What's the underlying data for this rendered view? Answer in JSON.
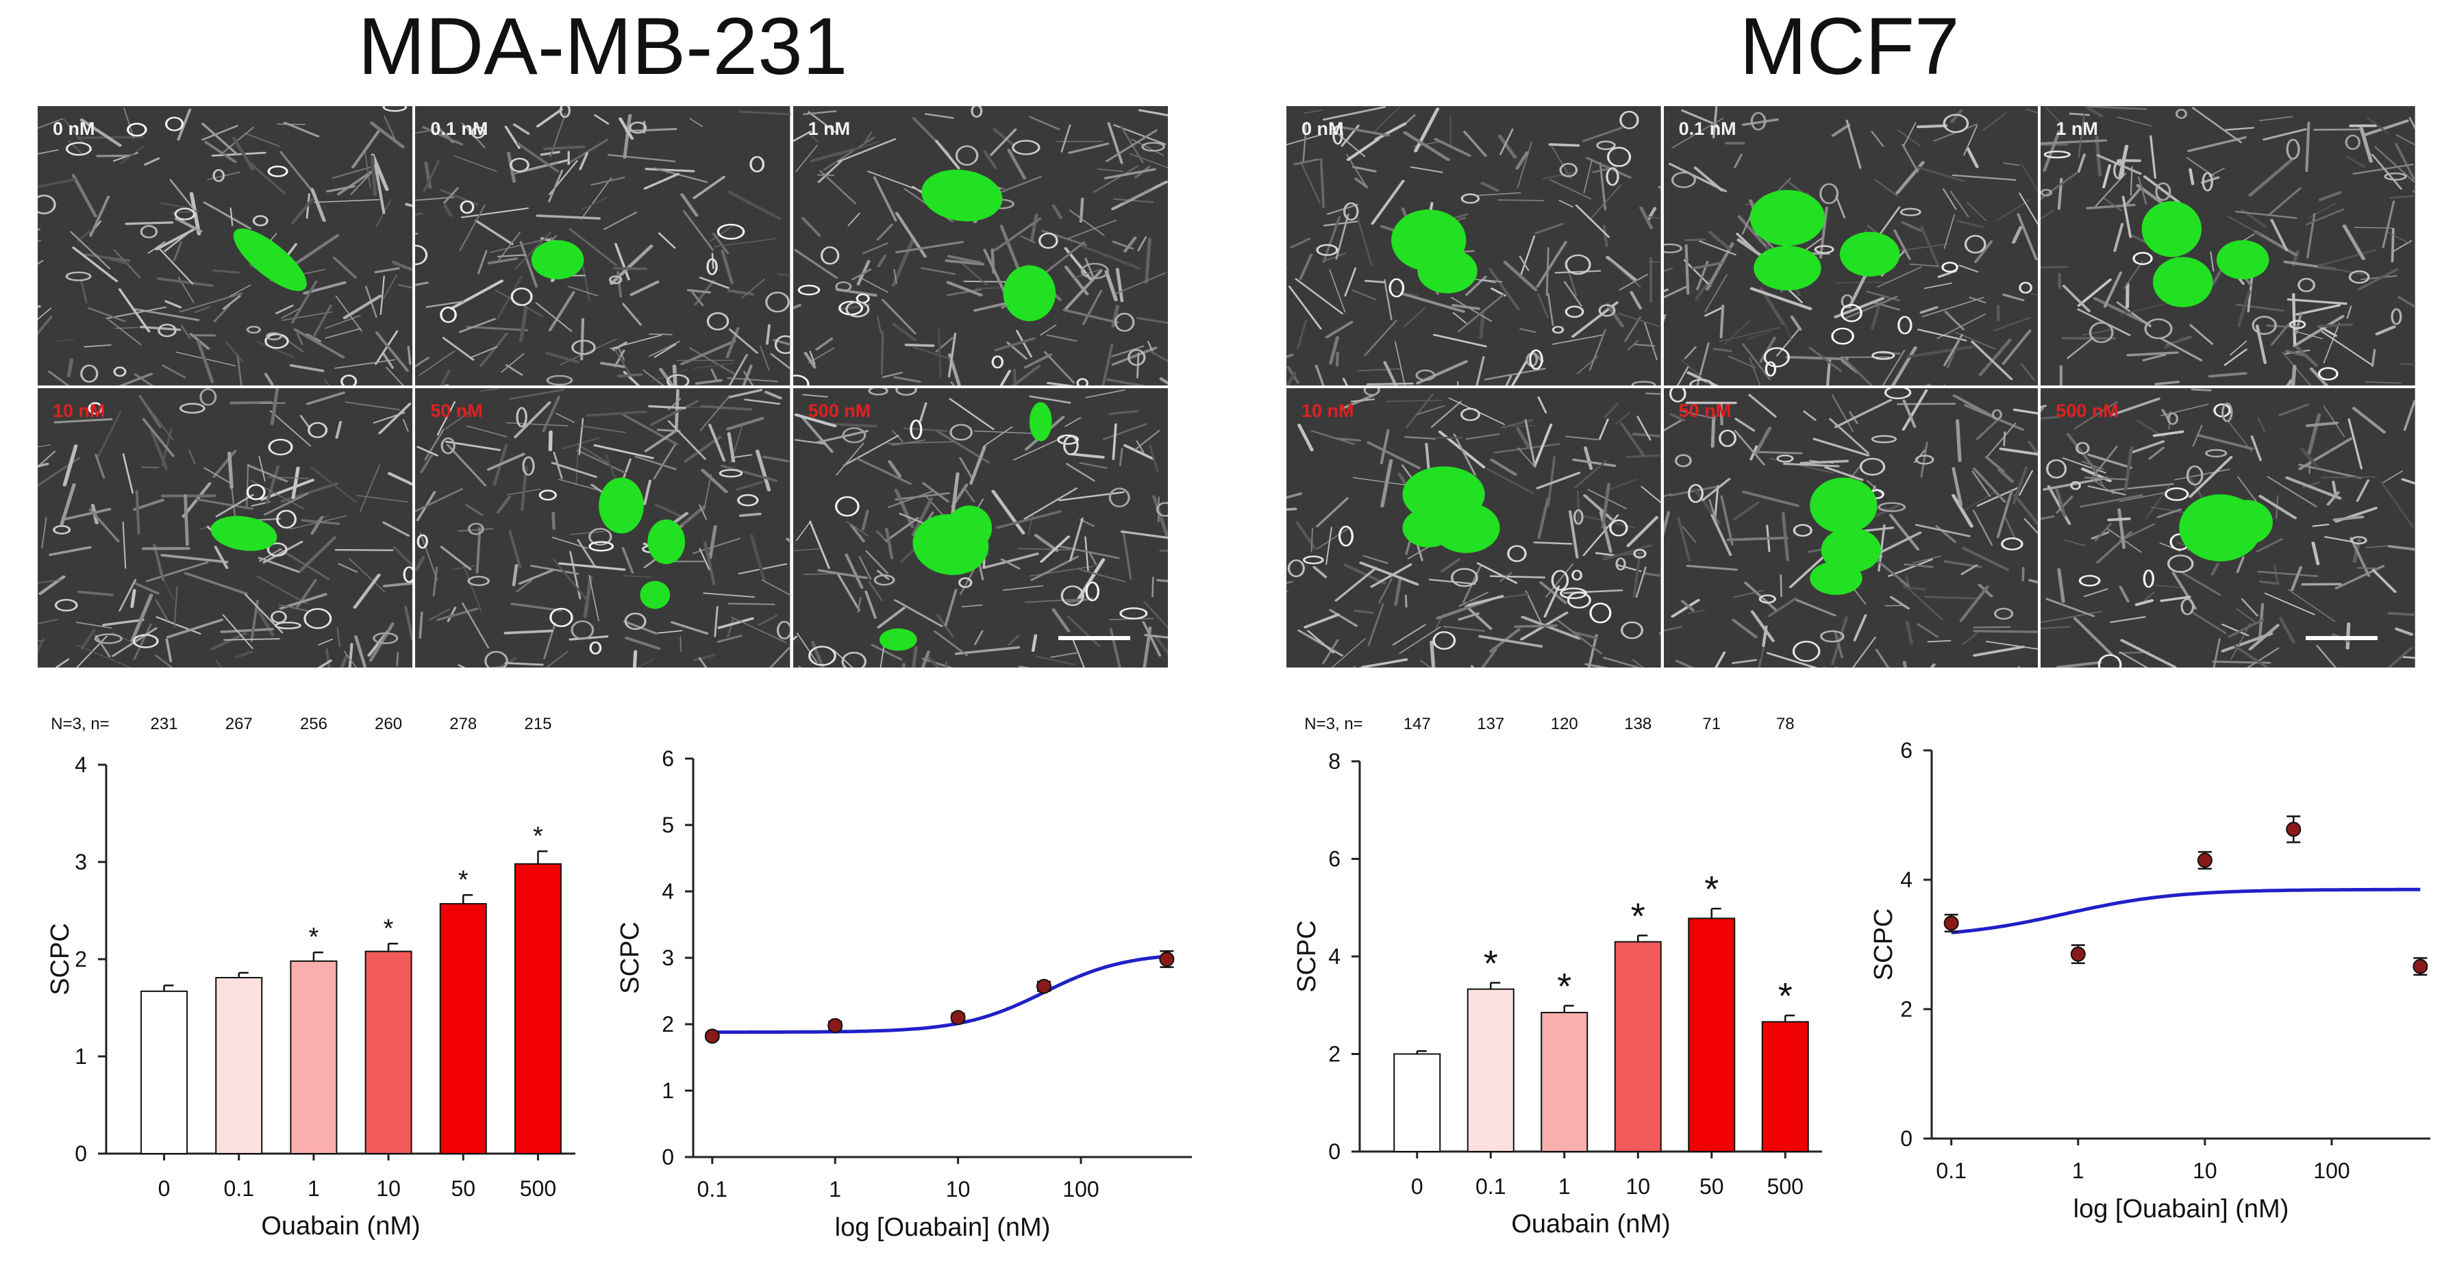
{
  "titles": {
    "left": "MDA-MB-231",
    "right": "MCF7"
  },
  "panel_labels": {
    "left": [
      "0 nM",
      "0.1 nM",
      "1 nM",
      "10 nM",
      "50 nM",
      "500 nM"
    ],
    "right": [
      "0 nM",
      "0.1 nM",
      "1 nM",
      "10 nM",
      "50 nM",
      "500 nM"
    ]
  },
  "colors": {
    "fill_0": "#ffffff",
    "fill_01": "#fde0e0",
    "fill_1": "#fbaeae",
    "fill_10": "#f25a5a",
    "fill_50": "#f00000",
    "fill_500": "#f00000",
    "curve": "#2020c8",
    "point": "#8a1a1a",
    "cells": "#22e022"
  },
  "chart_data": [
    {
      "type": "bar",
      "categories": [
        "0",
        "0.1",
        "1",
        "10",
        "50",
        "500"
      ],
      "values": [
        1.67,
        1.81,
        1.98,
        2.08,
        2.57,
        2.98
      ],
      "errors": [
        0.06,
        0.05,
        0.09,
        0.08,
        0.09,
        0.13
      ],
      "significant": [
        false,
        false,
        true,
        true,
        true,
        true
      ],
      "sig_mark": "*",
      "n_label": "N=3, n=",
      "n_values": [
        "231",
        "267",
        "256",
        "260",
        "278",
        "215"
      ],
      "ylabel": "SCPC",
      "xlabel": "Ouabain (nM)",
      "ylim": [
        0,
        4
      ],
      "yticks": [
        "0",
        "1",
        "2",
        "3",
        "4"
      ]
    },
    {
      "type": "scatter",
      "x": [
        0.1,
        1,
        10,
        50,
        500
      ],
      "y": [
        1.82,
        1.98,
        2.1,
        2.57,
        2.98
      ],
      "errors": [
        0.05,
        0.06,
        0.06,
        0.07,
        0.12
      ],
      "curve": {
        "bottom": 1.88,
        "top": 3.08,
        "logEC50": 1.7,
        "hill": 1.3
      },
      "ylabel": "SCPC",
      "xlabel": "log [Ouabain] (nM)",
      "xscale": "log",
      "xlim": [
        0.07,
        800
      ],
      "ylim": [
        0,
        6
      ],
      "xticks": [
        "0.1",
        "1",
        "10",
        "100"
      ],
      "yticks": [
        "0",
        "1",
        "2",
        "3",
        "4",
        "5",
        "6"
      ]
    },
    {
      "type": "bar",
      "categories": [
        "0",
        "0.1",
        "1",
        "10",
        "50",
        "500"
      ],
      "values": [
        2.0,
        3.33,
        2.85,
        4.3,
        4.78,
        2.66
      ],
      "errors": [
        0.06,
        0.13,
        0.14,
        0.13,
        0.2,
        0.13
      ],
      "significant": [
        false,
        true,
        true,
        true,
        true,
        true
      ],
      "sig_mark": "*",
      "n_label": "N=3, n=",
      "n_values": [
        "147",
        "137",
        "120",
        "138",
        "71",
        "78"
      ],
      "ylabel": "SCPC",
      "xlabel": "Ouabain (nM)",
      "ylim": [
        0,
        8
      ],
      "yticks": [
        "0",
        "2",
        "4",
        "6",
        "8"
      ]
    },
    {
      "type": "scatter",
      "x": [
        0.1,
        1,
        10,
        50,
        500
      ],
      "y": [
        3.33,
        2.85,
        4.3,
        4.78,
        2.66
      ],
      "errors": [
        0.13,
        0.14,
        0.13,
        0.2,
        0.13
      ],
      "curve": {
        "bottom": 3.1,
        "top": 3.85,
        "logEC50": -0.1,
        "hill": 1.0
      },
      "ylabel": "SCPC",
      "xlabel": "log [Ouabain] (nM)",
      "xscale": "log",
      "xlim": [
        0.07,
        600
      ],
      "ylim": [
        0,
        6
      ],
      "xticks": [
        "0.1",
        "1",
        "10",
        "100"
      ],
      "yticks": [
        "0",
        "2",
        "4",
        "6"
      ]
    }
  ]
}
